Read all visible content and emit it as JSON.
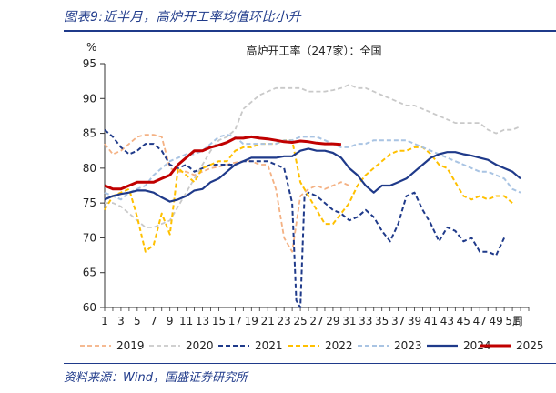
{
  "figure": {
    "title": "图表9:近半月，高炉开工率均值环比小升",
    "source": "资料来源：Wind，国盛证券研究所"
  },
  "chart_data": {
    "type": "line",
    "title": "高炉开工率（247家）：全国",
    "ylabel": "%",
    "xlabel": "周",
    "ylim": [
      60,
      95
    ],
    "yticks": [
      60,
      65,
      70,
      75,
      80,
      85,
      90,
      95
    ],
    "xticks": [
      1,
      3,
      5,
      7,
      9,
      11,
      13,
      15,
      17,
      19,
      21,
      23,
      25,
      27,
      29,
      31,
      33,
      35,
      37,
      39,
      41,
      43,
      45,
      47,
      49,
      51
    ],
    "x_unit_label": "周",
    "xlim": [
      1,
      53
    ],
    "grid": false,
    "legend": "bottom",
    "series": [
      {
        "name": "2019",
        "color": "#f4b183",
        "style": "dash",
        "width": 1.8,
        "x": [
          1,
          2,
          3,
          4,
          5,
          6,
          7,
          8,
          9,
          10,
          11,
          12,
          13,
          14,
          15,
          16,
          17,
          18,
          19,
          20,
          21,
          22,
          23,
          24,
          25,
          26,
          27,
          28,
          29,
          30,
          31
        ],
        "values": [
          83.5,
          82,
          82.5,
          83.5,
          84.5,
          84.8,
          84.8,
          84.5,
          80,
          79.5,
          79.5,
          79,
          79.5,
          80,
          80.2,
          80.5,
          80.8,
          81,
          81,
          80.5,
          80.5,
          77,
          70,
          68,
          76,
          77,
          77.5,
          77,
          77.5,
          78,
          77.5
        ]
      },
      {
        "name": "2020",
        "color": "#c9c9c9",
        "style": "dash",
        "width": 1.8,
        "x": [
          1,
          2,
          3,
          4,
          5,
          6,
          7,
          8,
          9,
          10,
          11,
          12,
          13,
          14,
          15,
          16,
          17,
          18,
          19,
          20,
          21,
          22,
          23,
          24,
          25,
          26,
          27,
          28,
          29,
          30,
          31,
          32,
          33,
          34,
          35,
          36,
          37,
          38,
          39,
          40,
          41,
          42,
          43,
          44,
          45,
          46,
          47,
          48,
          49,
          50,
          51,
          52
        ],
        "values": [
          75,
          75,
          74.5,
          73.5,
          72.5,
          71.5,
          71.5,
          72,
          72.5,
          74.5,
          76.5,
          78.5,
          80.5,
          82.5,
          84,
          84.5,
          85.5,
          88.5,
          89.5,
          90.5,
          91,
          91.5,
          91.5,
          91.5,
          91.5,
          91,
          91,
          91,
          91.2,
          91.5,
          92,
          91.5,
          91.5,
          91,
          90.5,
          90,
          89.5,
          89,
          89,
          88.5,
          88,
          87.5,
          87,
          86.5,
          86.5,
          86.5,
          86.5,
          85.5,
          85,
          85.5,
          85.5,
          86
        ]
      },
      {
        "name": "2021",
        "color": "#1f3a8a",
        "style": "dash",
        "width": 2,
        "x": [
          1,
          2,
          3,
          4,
          5,
          6,
          7,
          8,
          9,
          10,
          11,
          12,
          13,
          14,
          15,
          16,
          17,
          18,
          19,
          20,
          21,
          22,
          23,
          24,
          24.5,
          25,
          25.5,
          26,
          27,
          28,
          29,
          30,
          31,
          32,
          33,
          34,
          35,
          36,
          37,
          38,
          39,
          40,
          41,
          42,
          43,
          44,
          45,
          46,
          47,
          48,
          49,
          50
        ],
        "values": [
          85.5,
          84.5,
          83,
          82,
          82.5,
          83.5,
          83.5,
          82.5,
          80.5,
          80,
          80.5,
          79.5,
          80,
          80.5,
          80.5,
          80.5,
          80.5,
          81,
          81,
          81,
          81,
          80.5,
          80,
          75,
          61,
          60,
          76,
          76.5,
          76,
          75,
          74,
          73.5,
          72.5,
          73,
          74,
          73,
          71,
          69.5,
          72,
          76,
          76.5,
          74,
          72,
          69.5,
          71.5,
          71,
          69.5,
          70,
          68,
          68,
          67.5,
          70
        ]
      },
      {
        "name": "2022",
        "color": "#ffc000",
        "style": "dash",
        "width": 2,
        "x": [
          1,
          2,
          3,
          4,
          5,
          6,
          7,
          8,
          9,
          10,
          11,
          12,
          13,
          14,
          15,
          16,
          17,
          18,
          19,
          20,
          21,
          22,
          23,
          24,
          25,
          26,
          27,
          28,
          29,
          30,
          31,
          32,
          33,
          34,
          35,
          36,
          37,
          38,
          39,
          40,
          41,
          42,
          43,
          44,
          45,
          46,
          47,
          48,
          49,
          50,
          51
        ],
        "values": [
          74,
          76,
          76.5,
          77,
          73,
          68,
          69,
          73.5,
          70.5,
          80,
          79,
          78,
          80,
          80.5,
          81,
          81,
          82.5,
          83,
          83,
          83.5,
          83.5,
          83.5,
          84,
          84,
          78,
          76,
          74,
          72,
          72,
          73.5,
          75,
          77.5,
          79,
          80,
          81,
          82,
          82.5,
          82.5,
          83,
          83,
          82,
          80.5,
          80,
          78,
          76,
          75.5,
          76,
          75.5,
          76,
          76,
          75
        ]
      },
      {
        "name": "2023",
        "color": "#a9c4e3",
        "style": "dash",
        "width": 2,
        "x": [
          1,
          2,
          3,
          4,
          5,
          6,
          7,
          8,
          9,
          10,
          11,
          12,
          13,
          14,
          15,
          16,
          17,
          18,
          19,
          20,
          21,
          22,
          23,
          24,
          25,
          26,
          27,
          28,
          29,
          30,
          31,
          32,
          33,
          34,
          35,
          36,
          37,
          38,
          39,
          40,
          41,
          42,
          43,
          44,
          45,
          46,
          47,
          48,
          49,
          50,
          51,
          52
        ],
        "values": [
          76.5,
          76,
          75.5,
          76.5,
          77,
          77.5,
          79,
          80,
          81,
          81.5,
          82,
          82,
          82.5,
          83.5,
          84.5,
          84.8,
          84.5,
          83.5,
          83.5,
          83.5,
          83.5,
          83.5,
          84,
          84,
          84.5,
          84.5,
          84.5,
          84,
          83.5,
          83,
          83,
          83.5,
          83.5,
          84,
          84,
          84,
          84,
          84,
          83.5,
          83,
          82.5,
          82,
          81.5,
          81,
          80.5,
          80,
          79.5,
          79.5,
          79,
          78.5,
          77,
          76.5
        ]
      },
      {
        "name": "2024",
        "color": "#1f3a8a",
        "style": "solid",
        "width": 2.2,
        "x": [
          1,
          2,
          3,
          4,
          5,
          6,
          7,
          8,
          9,
          10,
          11,
          12,
          13,
          14,
          15,
          16,
          17,
          18,
          19,
          20,
          21,
          22,
          23,
          24,
          25,
          26,
          27,
          28,
          29,
          30,
          31,
          32,
          33,
          34,
          35,
          36,
          37,
          38,
          39,
          40,
          41,
          42,
          43,
          44,
          45,
          46,
          47,
          48,
          49,
          50,
          51,
          52
        ],
        "values": [
          75.5,
          76,
          76.3,
          76.5,
          76.8,
          76.8,
          76.5,
          75.8,
          75.2,
          75.5,
          76,
          76.8,
          77,
          78,
          78.5,
          79.5,
          80.5,
          81,
          81.5,
          81.5,
          81.5,
          81.5,
          81.7,
          81.7,
          82.5,
          82.8,
          82.5,
          82.5,
          82.2,
          81.5,
          80,
          79,
          77.5,
          76.5,
          77.5,
          77.5,
          78,
          78.5,
          79.5,
          80.5,
          81.5,
          82,
          82.3,
          82.3,
          82,
          81.8,
          81.5,
          81.2,
          80.5,
          80,
          79.5,
          78.5
        ]
      },
      {
        "name": "2025",
        "color": "#c00000",
        "style": "solid",
        "width": 3,
        "x": [
          1,
          2,
          3,
          4,
          5,
          6,
          7,
          8,
          9,
          10,
          11,
          12,
          13,
          14,
          15,
          16,
          17,
          18,
          19,
          20,
          21,
          22,
          23,
          24,
          25,
          26,
          27,
          28,
          29,
          30
        ],
        "values": [
          77.5,
          77,
          77,
          77.5,
          78,
          78,
          78,
          78.5,
          79,
          80.5,
          81.5,
          82.5,
          82.5,
          83,
          83.3,
          83.7,
          84.3,
          84.3,
          84.5,
          84.3,
          84.2,
          84,
          83.8,
          83.7,
          83.9,
          83.8,
          83.6,
          83.5,
          83.5,
          83.4
        ]
      }
    ]
  }
}
